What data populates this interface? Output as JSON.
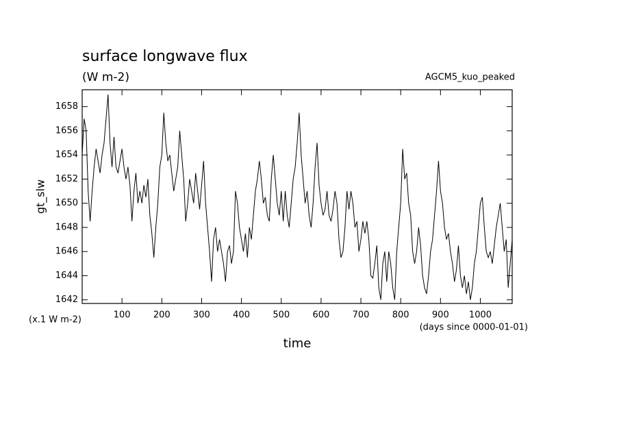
{
  "chart_data": {
    "type": "line",
    "title": "surface longwave flux",
    "subtitle": "(W m-2)",
    "annotation": "AGCM5_kuo_peaked",
    "ylabel": "gt_slw",
    "xlabel": "time",
    "yunit": "(x.1 W m-2)",
    "xunit": "(days since 0000-01-01)",
    "xlim": [
      0,
      1080
    ],
    "ylim": [
      1641.7,
      1659.4
    ],
    "xticks": [
      100,
      200,
      300,
      400,
      500,
      600,
      700,
      800,
      900,
      1000
    ],
    "yticks": [
      1642,
      1644,
      1646,
      1648,
      1650,
      1652,
      1654,
      1656,
      1658
    ],
    "grid": false,
    "x": [
      0,
      5,
      10,
      15,
      20,
      25,
      30,
      35,
      40,
      45,
      50,
      55,
      60,
      65,
      70,
      75,
      80,
      85,
      90,
      95,
      100,
      105,
      110,
      115,
      120,
      125,
      130,
      135,
      140,
      145,
      150,
      155,
      160,
      165,
      170,
      175,
      180,
      185,
      190,
      195,
      200,
      205,
      210,
      215,
      220,
      225,
      230,
      235,
      240,
      245,
      250,
      255,
      260,
      265,
      270,
      275,
      280,
      285,
      290,
      295,
      300,
      305,
      310,
      315,
      320,
      325,
      330,
      335,
      340,
      345,
      350,
      355,
      360,
      365,
      370,
      375,
      380,
      385,
      390,
      395,
      400,
      405,
      410,
      415,
      420,
      425,
      430,
      435,
      440,
      445,
      450,
      455,
      460,
      465,
      470,
      475,
      480,
      485,
      490,
      495,
      500,
      505,
      510,
      515,
      520,
      525,
      530,
      535,
      540,
      545,
      550,
      555,
      560,
      565,
      570,
      575,
      580,
      585,
      590,
      595,
      600,
      605,
      610,
      615,
      620,
      625,
      630,
      635,
      640,
      645,
      650,
      655,
      660,
      665,
      670,
      675,
      680,
      685,
      690,
      695,
      700,
      705,
      710,
      715,
      720,
      725,
      730,
      735,
      740,
      745,
      750,
      755,
      760,
      765,
      770,
      775,
      780,
      785,
      790,
      795,
      800,
      805,
      810,
      815,
      820,
      825,
      830,
      835,
      840,
      845,
      850,
      855,
      860,
      865,
      870,
      875,
      880,
      885,
      890,
      895,
      900,
      905,
      910,
      915,
      920,
      925,
      930,
      935,
      940,
      945,
      950,
      955,
      960,
      965,
      970,
      975,
      980,
      985,
      990,
      995,
      1000,
      1005,
      1010,
      1015,
      1020,
      1025,
      1030,
      1035,
      1040,
      1045,
      1050,
      1055,
      1060,
      1065,
      1070,
      1075,
      1080
    ],
    "series": [
      {
        "color": "#000000",
        "values": [
          1654,
          1657,
          1656,
          1651,
          1648.5,
          1651,
          1653,
          1654.5,
          1653.5,
          1652.5,
          1654,
          1655,
          1657,
          1659,
          1655,
          1653,
          1655.5,
          1653,
          1652.5,
          1653.5,
          1654.5,
          1653,
          1652,
          1653,
          1651.5,
          1648.5,
          1651,
          1652.5,
          1650,
          1651,
          1650,
          1651.5,
          1650.5,
          1652,
          1649,
          1647.5,
          1645.5,
          1648,
          1650,
          1653,
          1654,
          1657.5,
          1655,
          1653.5,
          1654,
          1652.5,
          1651,
          1652,
          1653,
          1656,
          1654,
          1652,
          1648.5,
          1650,
          1652,
          1651,
          1650,
          1652.5,
          1651,
          1649.5,
          1651.5,
          1653.5,
          1650,
          1648,
          1646,
          1643.5,
          1647,
          1648,
          1646,
          1647,
          1646,
          1645,
          1643.5,
          1646,
          1646.5,
          1645,
          1646,
          1651,
          1650,
          1648,
          1647,
          1646,
          1647.5,
          1645.5,
          1648,
          1647,
          1649,
          1651,
          1652,
          1653.5,
          1652,
          1650,
          1650.5,
          1649,
          1648.5,
          1652,
          1654,
          1652,
          1650,
          1649,
          1651,
          1648.5,
          1651,
          1649,
          1648,
          1650,
          1652,
          1653,
          1655,
          1657.5,
          1654,
          1652,
          1650,
          1651,
          1649,
          1648,
          1650,
          1653,
          1655,
          1651.5,
          1650,
          1649,
          1649.5,
          1651,
          1649,
          1648.5,
          1649.5,
          1651,
          1650,
          1647,
          1645.5,
          1646,
          1648,
          1651,
          1649.5,
          1651,
          1650,
          1648,
          1648.5,
          1646,
          1647,
          1648.5,
          1647.5,
          1648.5,
          1647,
          1644,
          1643.8,
          1645,
          1646.5,
          1643,
          1642,
          1645,
          1646,
          1643.5,
          1646,
          1645,
          1643,
          1642,
          1646,
          1648,
          1650,
          1654.5,
          1652,
          1652.5,
          1650,
          1649,
          1646,
          1645,
          1646,
          1648,
          1646.5,
          1644,
          1643,
          1642.5,
          1644,
          1646,
          1647,
          1649,
          1651,
          1653.5,
          1651,
          1650,
          1648,
          1647,
          1647.5,
          1646,
          1645,
          1643.5,
          1644.5,
          1646.5,
          1644,
          1643,
          1644,
          1642.5,
          1643.5,
          1642,
          1643,
          1645,
          1646,
          1648,
          1650,
          1650.5,
          1648,
          1646,
          1645.5,
          1646,
          1645,
          1646.5,
          1648,
          1649,
          1650,
          1648,
          1646,
          1647,
          1643,
          1645,
          1647
        ]
      }
    ]
  }
}
